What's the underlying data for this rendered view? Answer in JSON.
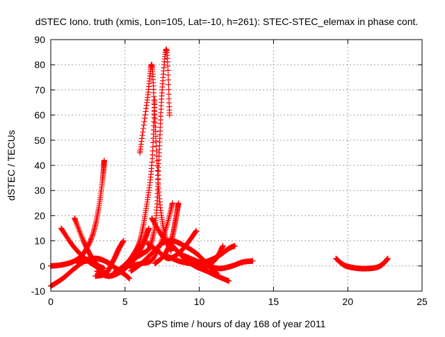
{
  "chart_data": {
    "type": "scatter",
    "title": "dSTEC Iono. truth (xmis, Lon=105, Lat=-10, h=261): STEC-STEC_elemax in phase cont.",
    "xlabel": "GPS time / hours of day 168 of year 2011",
    "ylabel": "dSTEC  / TECUs",
    "xlim": [
      0,
      25
    ],
    "ylim": [
      -10,
      90
    ],
    "xticks": [
      0,
      5,
      10,
      15,
      20,
      25
    ],
    "yticks": [
      -10,
      0,
      10,
      20,
      30,
      40,
      50,
      60,
      70,
      80,
      90
    ],
    "grid": true,
    "marker": "+",
    "color": "#ff0000",
    "series": [
      {
        "x": [
          0.0,
          0.8,
          1.6,
          2.4,
          3.2,
          3.6
        ],
        "y": [
          -8,
          -5,
          -1,
          2,
          0,
          -1
        ]
      },
      {
        "x": [
          0.0,
          0.8,
          1.6,
          2.2,
          2.8,
          3.2,
          3.5,
          3.6
        ],
        "y": [
          0,
          0.5,
          2,
          5,
          12,
          22,
          35,
          42
        ]
      },
      {
        "x": [
          0.7,
          1.5,
          2.3,
          3.0,
          3.6
        ],
        "y": [
          15,
          8,
          3,
          0,
          -2
        ]
      },
      {
        "x": [
          1.6,
          2.2,
          2.7,
          3.2,
          3.7
        ],
        "y": [
          19,
          10,
          4,
          0,
          -3
        ]
      },
      {
        "x": [
          1.7,
          2.4,
          3.1,
          3.8,
          4.4,
          4.9,
          5.3
        ],
        "y": [
          2,
          2.5,
          3,
          1.5,
          -1,
          -3,
          -5
        ]
      },
      {
        "x": [
          3.1,
          3.8,
          4.5,
          5.2,
          5.8,
          6.3,
          6.6
        ],
        "y": [
          -2,
          -4,
          -3,
          0,
          4,
          10,
          15
        ]
      },
      {
        "x": [
          3.0,
          3.7,
          4.2,
          4.6,
          4.9
        ],
        "y": [
          -4,
          -3,
          2,
          7,
          10
        ]
      },
      {
        "x": [
          4.2,
          4.9,
          5.5,
          6.0,
          6.4,
          6.8,
          7.0
        ],
        "y": [
          -3,
          0,
          4,
          10,
          22,
          40,
          66
        ]
      },
      {
        "x": [
          6.0,
          6.5,
          6.8,
          7.0,
          7.3,
          7.7,
          8.1
        ],
        "y": [
          45,
          66,
          80,
          60,
          28,
          12,
          6
        ]
      },
      {
        "x": [
          5.6,
          6.2,
          6.7,
          7.1,
          7.3,
          7.5,
          7.8,
          8.0
        ],
        "y": [
          3,
          5,
          8,
          20,
          45,
          70,
          86,
          60
        ]
      },
      {
        "x": [
          5.3,
          6.1,
          6.9,
          7.7,
          8.2
        ],
        "y": [
          0,
          1,
          3,
          14,
          25
        ]
      },
      {
        "x": [
          5.4,
          6.1,
          6.8,
          7.5,
          8.2,
          9.0,
          9.8,
          10.5,
          11.2
        ],
        "y": [
          -2,
          1,
          5,
          9,
          10,
          8,
          5,
          1,
          -3
        ]
      },
      {
        "x": [
          6.8,
          7.5,
          8.2,
          9.0,
          9.7,
          10.5,
          11.2,
          12.0
        ],
        "y": [
          19,
          12,
          8,
          3,
          0,
          -2,
          -4,
          -6
        ]
      },
      {
        "x": [
          7.0,
          7.6,
          8.1,
          8.4,
          8.6
        ],
        "y": [
          1,
          4,
          10,
          18,
          25
        ]
      },
      {
        "x": [
          6.5,
          7.2,
          7.9,
          8.6,
          9.2,
          9.8
        ],
        "y": [
          9,
          6,
          3,
          5,
          9,
          14
        ]
      },
      {
        "x": [
          7.8,
          8.6,
          9.4,
          10.2,
          11.0,
          11.6
        ],
        "y": [
          4,
          2,
          1,
          0,
          2,
          8
        ]
      },
      {
        "x": [
          8.5,
          9.2,
          9.9,
          10.6,
          11.3,
          12.0,
          12.4
        ],
        "y": [
          6,
          3,
          1,
          2,
          4,
          7,
          8
        ]
      },
      {
        "x": [
          9.0,
          9.8,
          10.6,
          11.4,
          12.2,
          12.9,
          13.6
        ],
        "y": [
          4,
          2,
          0,
          -1,
          0,
          1.5,
          2
        ]
      },
      {
        "x": [
          19.2,
          19.7,
          20.2,
          20.8,
          21.4,
          22.0,
          22.4,
          22.7
        ],
        "y": [
          3,
          0.5,
          -0.5,
          -1,
          -1,
          -0.5,
          1,
          3
        ]
      }
    ]
  }
}
